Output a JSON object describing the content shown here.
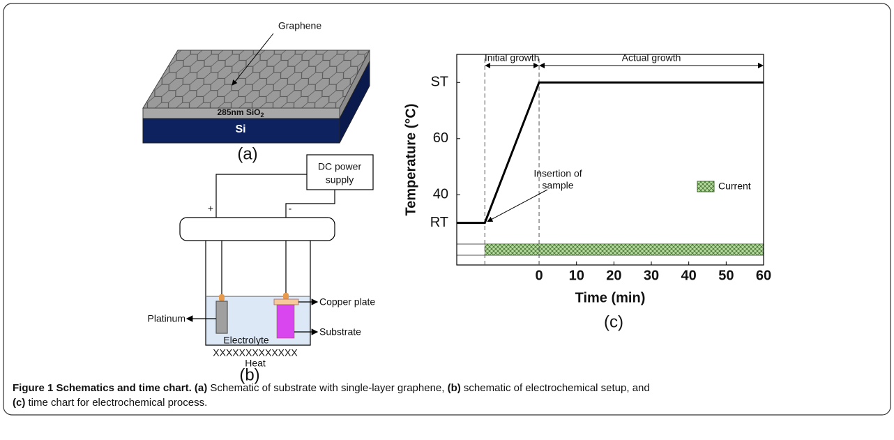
{
  "figure": {
    "panel_a": {
      "graphene": "Graphene",
      "oxide": "285nm SiO",
      "oxide_sub": "2",
      "silicon": "Si",
      "label": "(a)"
    },
    "panel_b": {
      "power": [
        "DC power",
        "supply"
      ],
      "plus": "+",
      "minus": "-",
      "copper": "Copper plate",
      "platinum": "Platinum",
      "substrate": "Substrate",
      "electrolyte": "Electrolyte",
      "heater": "XXXXXXXXXXXXX",
      "heat": "Heat",
      "label": "(b)"
    },
    "panel_c_label": "(c)",
    "caption": {
      "label": "Figure 1",
      "title": " Schematics and time chart.",
      "parts": [
        {
          "label": " (a)",
          "text": " Schematic of substrate with single-layer graphene, "
        },
        {
          "label": "(b)",
          "text": " schematic of electrochemical setup, and"
        },
        {
          "label": "(c)",
          "text": " time chart for electrochemical process."
        }
      ]
    }
  },
  "chart_data": {
    "type": "line",
    "y_label": "Temperature (°C)",
    "x_label": "Time (min)",
    "x": [
      -22,
      -14.5,
      0,
      60
    ],
    "values": [
      30,
      30,
      80,
      80
    ],
    "color": "#000000",
    "xlim": [
      -22,
      60
    ],
    "ylim": [
      15,
      90
    ],
    "xticks": [
      0,
      10,
      20,
      30,
      40,
      50,
      60
    ],
    "yticks": [
      {
        "value": 30,
        "label": "RT"
      },
      40,
      60,
      {
        "value": 80,
        "label": "ST"
      }
    ],
    "markers": [
      -14.5,
      0
    ],
    "phases": [
      {
        "name": "Initial growth",
        "x": [
          -14.5,
          0
        ]
      },
      {
        "name": "Actual growth",
        "x": [
          0,
          60
        ]
      }
    ],
    "annotation": [
      "Insertion of",
      "sample"
    ],
    "current": {
      "name": "Current",
      "x": [
        -14.5,
        60
      ],
      "color": "#b8dca0"
    }
  }
}
